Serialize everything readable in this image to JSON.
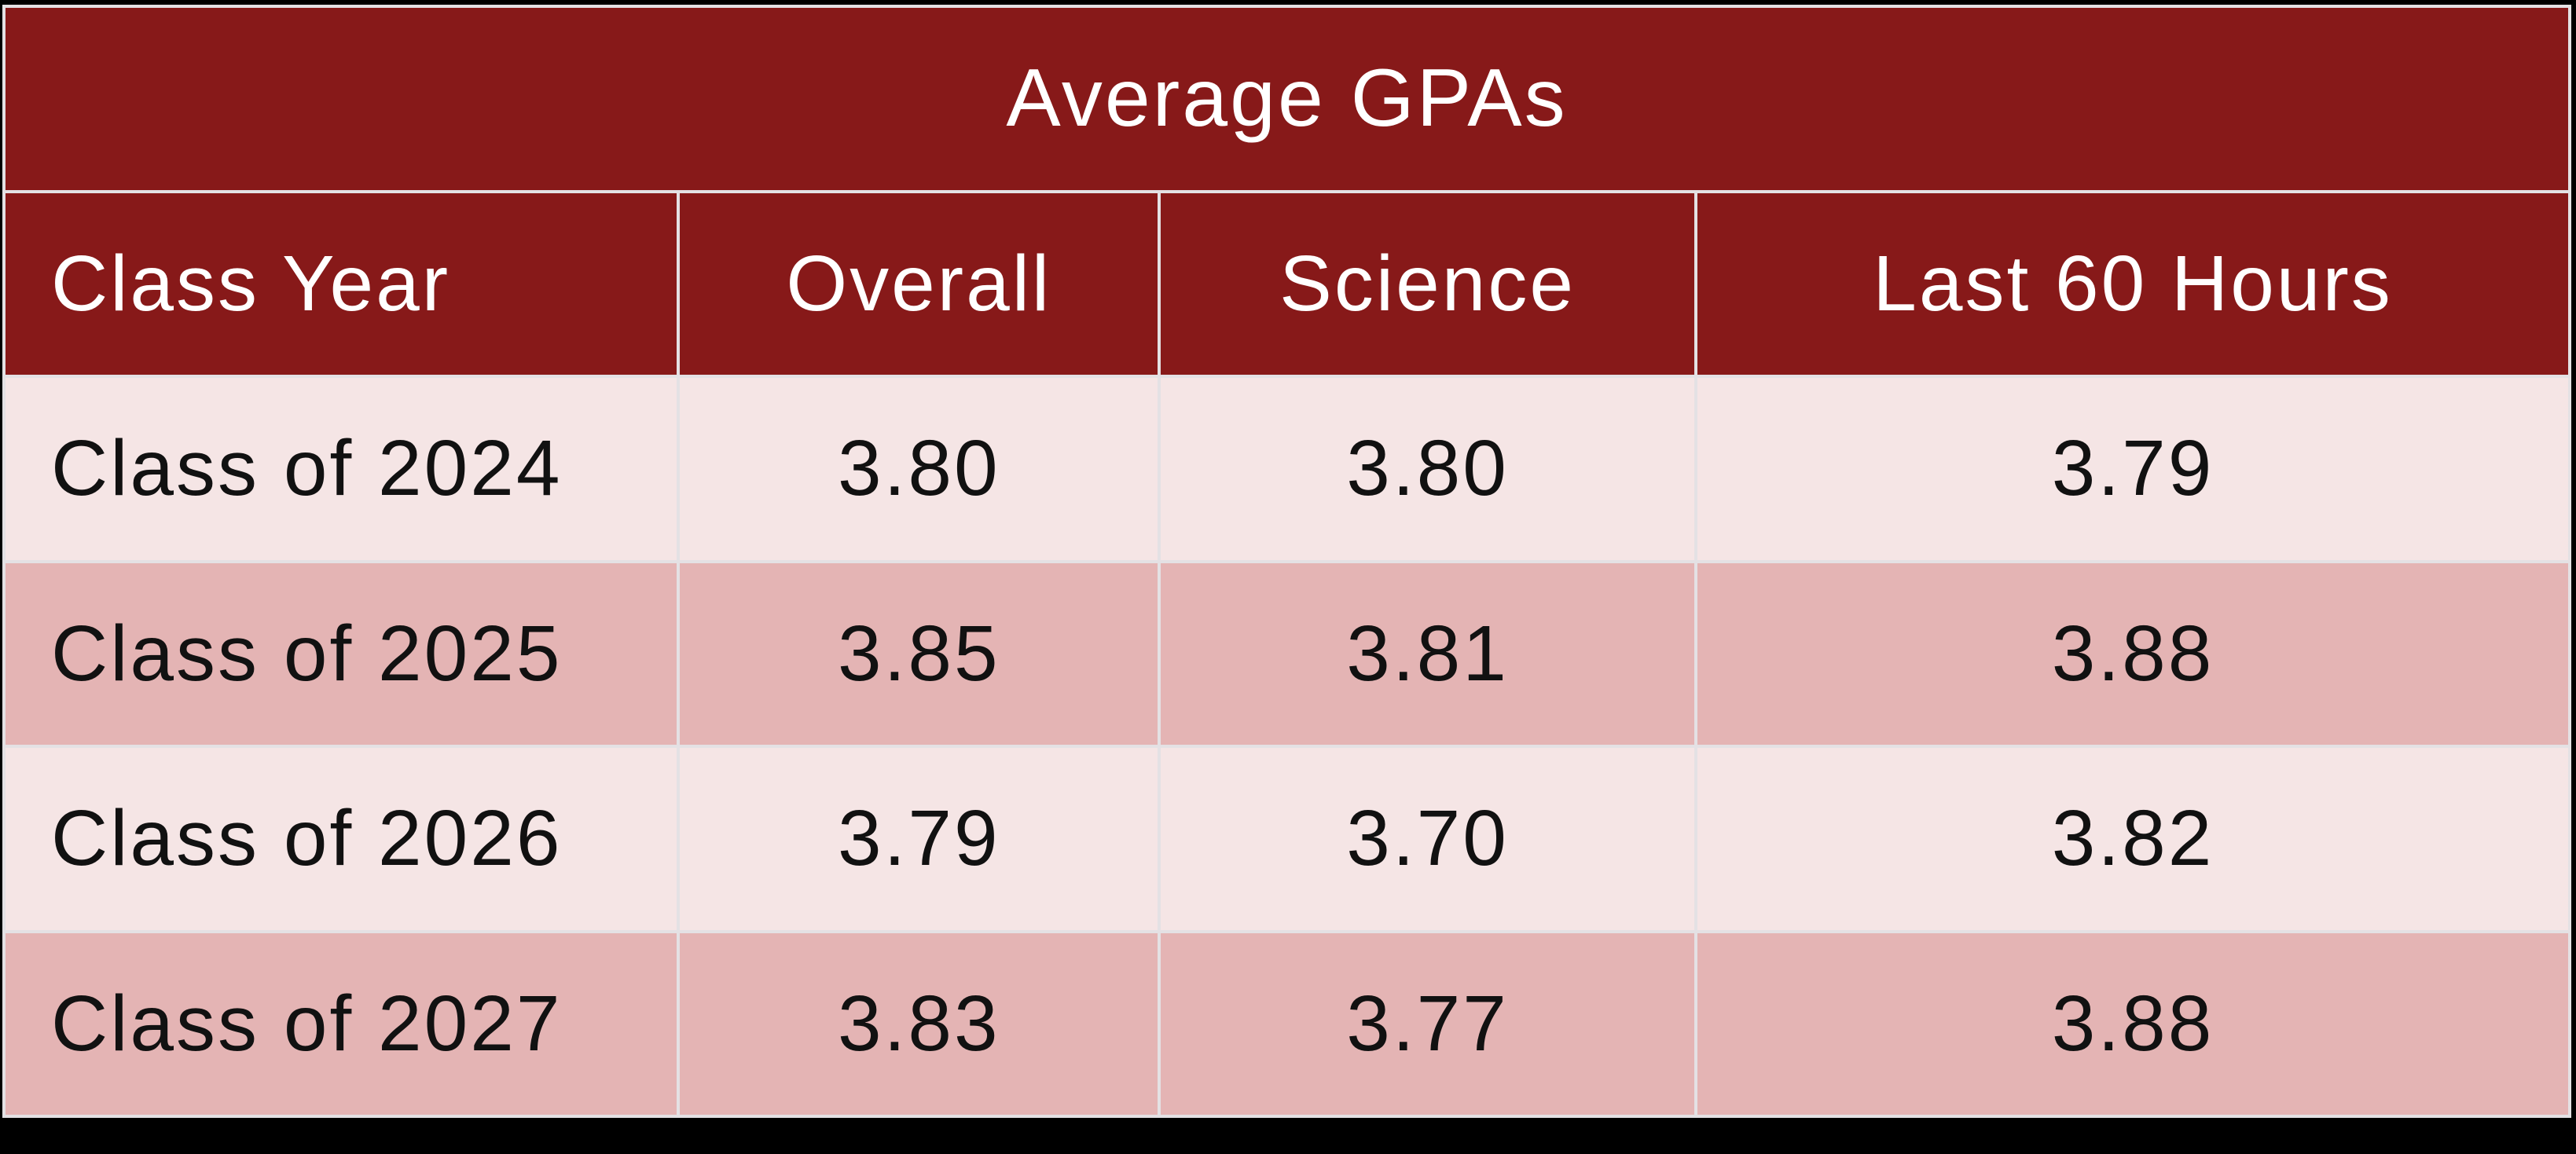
{
  "table": {
    "title": "Average GPAs",
    "columns": [
      "Class Year",
      "Overall",
      "Science",
      "Last 60 Hours"
    ],
    "rows": [
      [
        "Class of 2024",
        "3.80",
        "3.80",
        "3.79"
      ],
      [
        "Class of 2025",
        "3.85",
        "3.81",
        "3.88"
      ],
      [
        "Class of 2026",
        "3.79",
        "3.70",
        "3.82"
      ],
      [
        "Class of 2027",
        "3.83",
        "3.77",
        "3.88"
      ]
    ]
  },
  "colors": {
    "header_red": "#871919",
    "row_light": "#F5E5E5",
    "row_alt": "#E4B4B4",
    "gridline": "#E4E1E4",
    "text_on_red": "#FFFFFF",
    "text_on_pink": "#111111",
    "page_background": "#000000"
  },
  "chart_data": {
    "type": "table",
    "title": "Average GPAs",
    "categories": [
      "Class of 2024",
      "Class of 2025",
      "Class of 2026",
      "Class of 2027"
    ],
    "series": [
      {
        "name": "Overall",
        "values": [
          3.8,
          3.85,
          3.79,
          3.83
        ]
      },
      {
        "name": "Science",
        "values": [
          3.8,
          3.81,
          3.7,
          3.77
        ]
      },
      {
        "name": "Last 60 Hours",
        "values": [
          3.79,
          3.88,
          3.82,
          3.88
        ]
      }
    ]
  }
}
